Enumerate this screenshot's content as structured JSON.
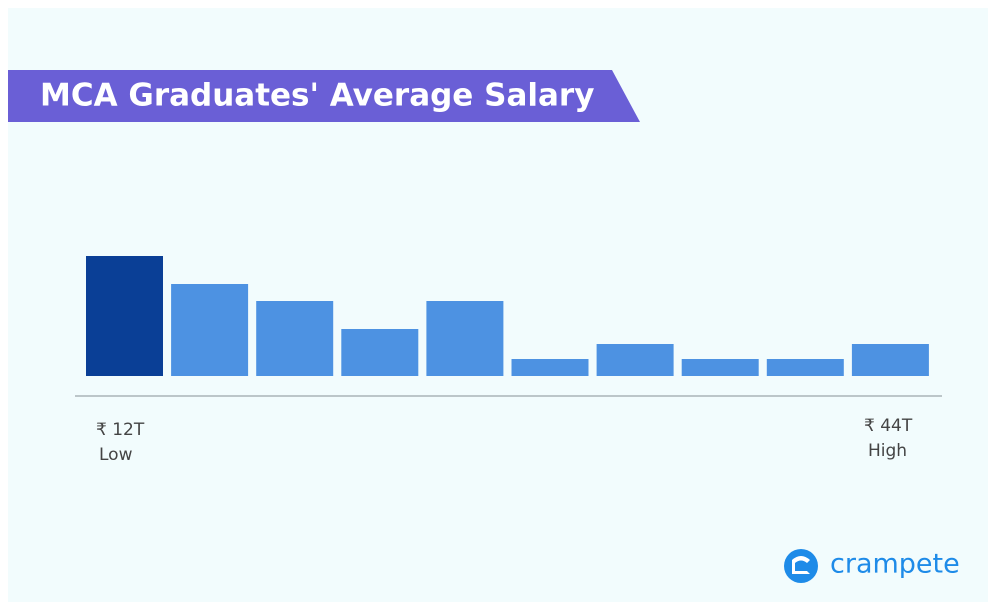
{
  "chart_data": {
    "type": "bar",
    "title": "MCA Graduates' Average Salary",
    "categories": [
      null,
      null,
      null,
      null,
      null,
      null,
      null,
      null,
      null,
      null
    ],
    "values": [
      120,
      92,
      75,
      47,
      75,
      17,
      32,
      17,
      17,
      32
    ],
    "colors": [
      "#0a3f96",
      "#4d92e2",
      "#4d92e2",
      "#4d92e2",
      "#4d92e2",
      "#4d92e2",
      "#4d92e2",
      "#4d92e2",
      "#4d92e2",
      "#4d92e2"
    ],
    "low_label": {
      "amount": "₹ 12T",
      "text": "Low"
    },
    "high_label": {
      "amount": "₹ 44T",
      "text": "High"
    }
  },
  "brand": "crampete"
}
